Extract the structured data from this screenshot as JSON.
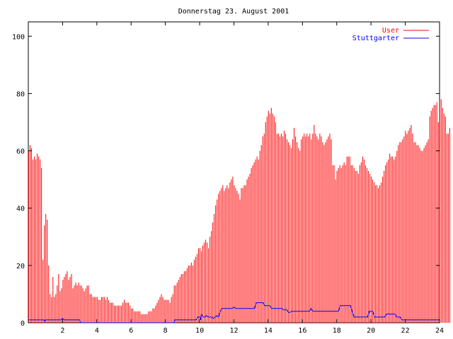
{
  "chart_data": {
    "type": "bar",
    "title": "Donnerstag 23. August 2001",
    "xlabel": "",
    "ylabel": "",
    "xlim": [
      0,
      24
    ],
    "ylim": [
      0,
      105
    ],
    "x_ticks": [
      "2",
      "4",
      "6",
      "8",
      "10",
      "12",
      "14",
      "16",
      "18",
      "20",
      "22",
      "24"
    ],
    "y_ticks": [
      "0",
      "20",
      "40",
      "60",
      "80",
      "100"
    ],
    "grid": false,
    "legend_position": "top-right",
    "series": [
      {
        "name": "User",
        "type": "impulse",
        "color": "#ff0000",
        "x_start": 0,
        "x_step": 0.0833,
        "values": [
          60,
          62,
          61,
          57,
          58,
          57,
          59,
          58,
          57,
          54,
          22,
          34,
          38,
          36,
          20,
          10,
          9,
          16,
          9,
          10,
          13,
          17,
          11,
          12,
          15,
          16,
          17,
          18,
          15,
          16,
          17,
          12,
          13,
          14,
          13,
          14,
          13,
          13,
          12,
          11,
          12,
          13,
          13,
          10,
          10,
          9,
          9,
          9,
          9,
          8,
          8,
          9,
          9,
          9,
          8,
          9,
          8,
          7,
          7,
          7,
          6,
          6,
          6,
          6,
          6,
          6,
          7,
          8,
          7,
          7,
          7,
          6,
          5,
          5,
          4,
          4,
          4,
          4,
          4,
          3,
          3,
          3,
          3,
          3,
          4,
          4,
          4,
          5,
          5,
          6,
          7,
          8,
          9,
          10,
          9,
          8,
          8,
          8,
          8,
          7,
          9,
          10,
          13,
          13,
          14,
          15,
          16,
          17,
          17,
          18,
          18,
          19,
          20,
          20,
          21,
          20,
          22,
          23,
          24,
          26,
          26,
          25,
          27,
          28,
          29,
          28,
          26,
          30,
          32,
          35,
          38,
          41,
          43,
          45,
          46,
          47,
          48,
          46,
          47,
          48,
          47,
          49,
          50,
          51,
          48,
          47,
          46,
          45,
          43,
          47,
          47,
          48,
          48,
          50,
          51,
          52,
          54,
          55,
          56,
          57,
          58,
          57,
          60,
          62,
          65,
          66,
          70,
          72,
          74,
          73,
          75,
          73,
          72,
          70,
          66,
          66,
          65,
          66,
          65,
          67,
          66,
          64,
          63,
          62,
          61,
          64,
          68,
          65,
          63,
          61,
          60,
          64,
          65,
          66,
          65,
          66,
          65,
          66,
          64,
          66,
          69,
          66,
          65,
          64,
          66,
          65,
          63,
          62,
          63,
          64,
          65,
          66,
          64,
          55,
          55,
          50,
          53,
          54,
          55,
          54,
          55,
          56,
          55,
          58,
          58,
          58,
          55,
          55,
          54,
          53,
          53,
          52,
          55,
          56,
          58,
          57,
          55,
          54,
          53,
          52,
          51,
          50,
          49,
          48,
          48,
          47,
          48,
          49,
          51,
          53,
          55,
          56,
          57,
          59,
          58,
          58,
          57,
          58,
          60,
          62,
          63,
          63,
          64,
          65,
          67,
          66,
          67,
          68,
          69,
          66,
          63,
          63,
          62,
          62,
          61,
          60,
          60,
          61,
          62,
          63,
          64,
          72,
          74,
          75,
          76,
          76,
          77,
          70,
          78,
          78,
          75,
          73,
          72,
          66,
          66,
          68
        ]
      },
      {
        "name": "Stuttgarter",
        "type": "line",
        "color": "#0000ff",
        "points": [
          [
            0,
            1
          ],
          [
            0.9,
            1
          ],
          [
            0.95,
            0.5
          ],
          [
            1.0,
            1
          ],
          [
            1.9,
            1
          ],
          [
            2.0,
            1.5
          ],
          [
            2.1,
            1
          ],
          [
            3.0,
            1
          ],
          [
            3.05,
            0
          ],
          [
            8.5,
            0
          ],
          [
            8.55,
            1
          ],
          [
            9.8,
            1
          ],
          [
            9.9,
            2
          ],
          [
            10.0,
            2
          ],
          [
            10.05,
            1
          ],
          [
            10.1,
            3
          ],
          [
            10.2,
            2
          ],
          [
            10.3,
            2
          ],
          [
            10.4,
            2.5
          ],
          [
            10.5,
            2
          ],
          [
            10.6,
            2
          ],
          [
            10.7,
            2
          ],
          [
            10.8,
            1.5
          ],
          [
            10.9,
            2
          ],
          [
            11.0,
            2.5
          ],
          [
            11.1,
            2
          ],
          [
            11.2,
            4
          ],
          [
            11.3,
            5
          ],
          [
            11.8,
            5
          ],
          [
            11.9,
            5
          ],
          [
            12.0,
            5.5
          ],
          [
            12.1,
            5
          ],
          [
            13.2,
            5
          ],
          [
            13.3,
            7
          ],
          [
            13.7,
            7
          ],
          [
            13.8,
            6
          ],
          [
            14.1,
            6
          ],
          [
            14.2,
            5
          ],
          [
            14.8,
            5
          ],
          [
            14.9,
            4.5
          ],
          [
            15.1,
            4.5
          ],
          [
            15.2,
            3.5
          ],
          [
            15.4,
            4
          ],
          [
            16.4,
            4
          ],
          [
            16.5,
            5
          ],
          [
            16.6,
            4
          ],
          [
            16.9,
            4
          ],
          [
            17.0,
            4
          ],
          [
            17.4,
            4
          ],
          [
            18.1,
            4
          ],
          [
            18.2,
            6
          ],
          [
            18.8,
            6
          ],
          [
            18.9,
            4
          ],
          [
            19.0,
            2
          ],
          [
            19.8,
            2
          ],
          [
            19.9,
            4
          ],
          [
            20.1,
            4
          ],
          [
            20.2,
            2
          ],
          [
            20.8,
            2
          ],
          [
            20.9,
            3
          ],
          [
            21.4,
            3
          ],
          [
            21.5,
            2
          ],
          [
            21.7,
            2
          ],
          [
            21.8,
            1
          ],
          [
            24,
            1
          ]
        ]
      }
    ]
  }
}
